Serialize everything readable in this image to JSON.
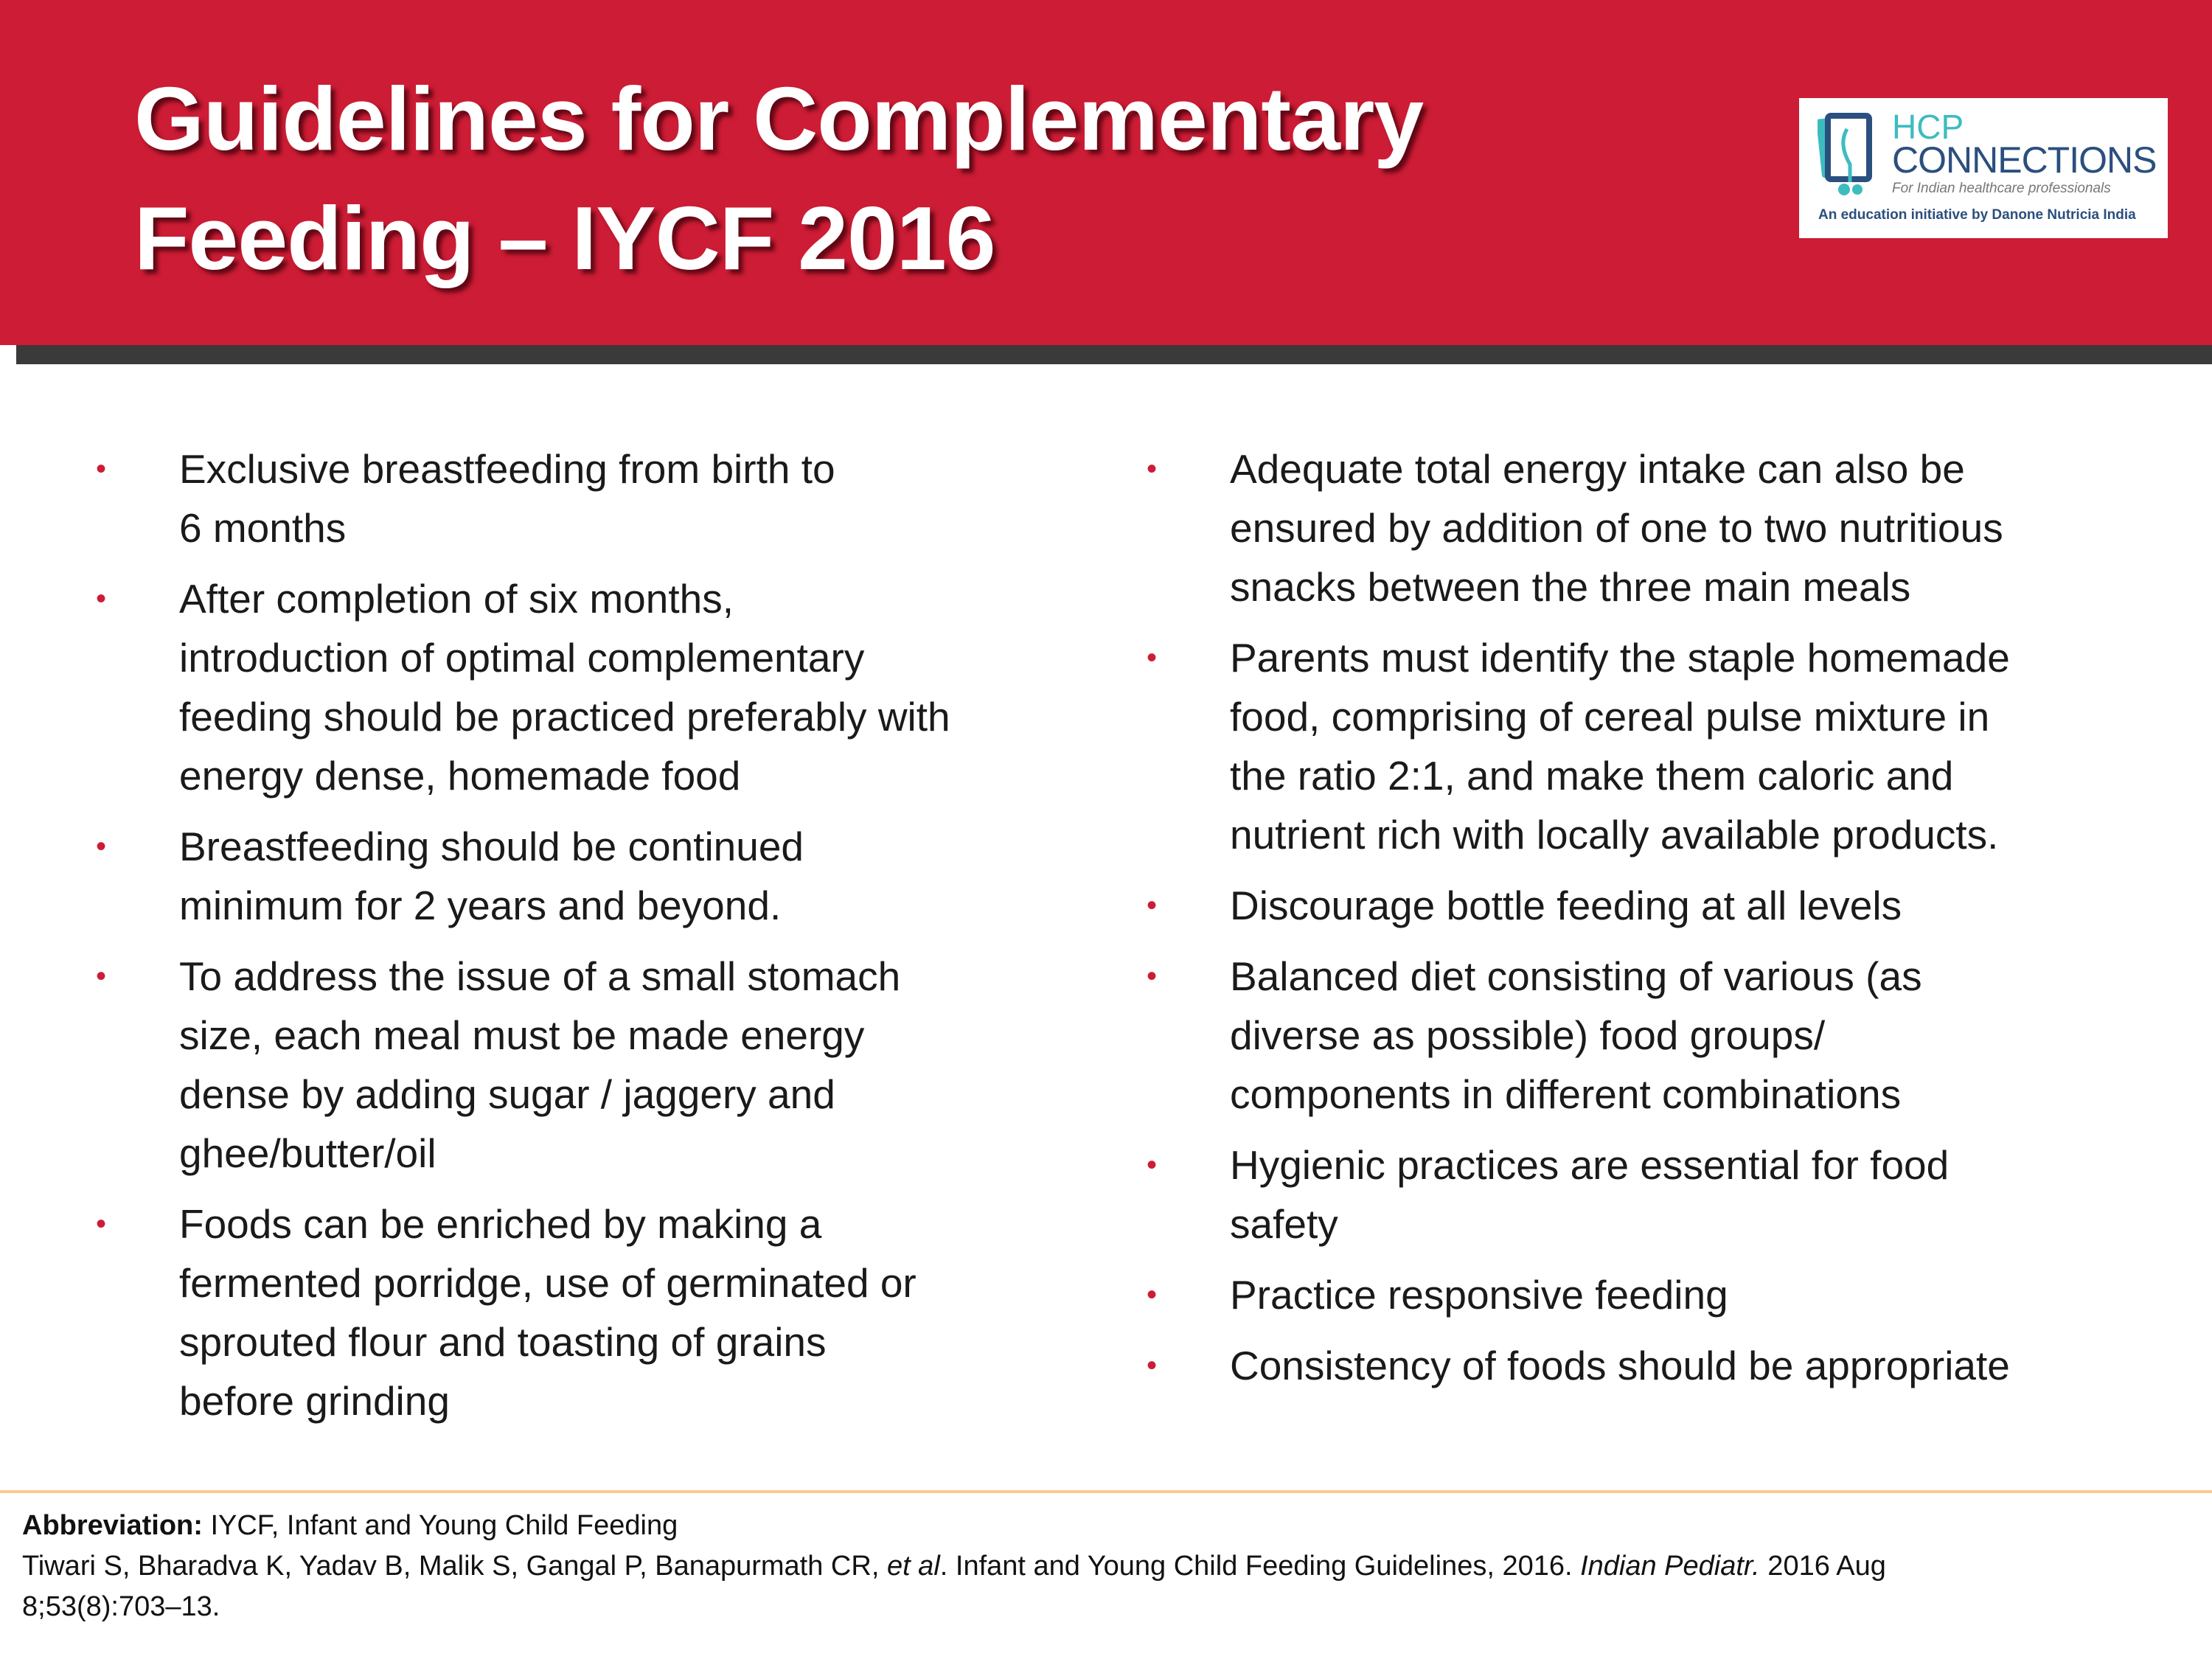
{
  "header": {
    "title_lines": [
      "Guidelines for Complementary",
      "Feeding – IYCF 2016"
    ]
  },
  "logo": {
    "line1": "HCP",
    "line2": "CONNECTIONS",
    "tagline": "For Indian healthcare professionals",
    "initiative": "An education initiative by Danone Nutricia India"
  },
  "left_items": [
    {
      "lines": [
        "Exclusive breastfeeding from birth to",
        "6 months"
      ]
    },
    {
      "lines": [
        "After completion of six months,",
        "introduction of optimal complementary",
        "feeding should be practiced preferably with",
        "energy dense, homemade food"
      ]
    },
    {
      "lines": [
        "Breastfeeding should be continued",
        "minimum for 2 years and beyond."
      ]
    },
    {
      "lines": [
        "To address the issue of a small stomach",
        "size, each meal must be made energy",
        "dense by adding sugar / jaggery and",
        "ghee/butter/oil"
      ]
    },
    {
      "lines": [
        "Foods can be enriched by making a",
        "fermented porridge, use of germinated or",
        "sprouted flour and toasting of grains",
        "before grinding"
      ]
    }
  ],
  "right_items": [
    {
      "lines": [
        "Adequate total energy intake can also be",
        "ensured by addition of one to two nutritious",
        "snacks between the three main meals"
      ]
    },
    {
      "lines": [
        "Parents must identify the staple homemade",
        "food, comprising of cereal pulse mixture in",
        "the ratio 2:1, and make them caloric and",
        "nutrient rich with locally available products."
      ]
    },
    {
      "lines": [
        "Discourage bottle feeding at all levels"
      ]
    },
    {
      "lines": [
        "Balanced diet consisting of various (as",
        "diverse as possible) food groups/",
        "components in different combinations"
      ]
    },
    {
      "lines": [
        "Hygienic practices are essential for food",
        "safety"
      ]
    },
    {
      "lines": [
        "Practice responsive feeding"
      ]
    },
    {
      "lines": [
        "Consistency of foods should be appropriate"
      ]
    }
  ],
  "bullet_char": "•",
  "footer": {
    "abbr_label": "Abbreviation:",
    "abbr_text": " IYCF, Infant and Young Child Feeding",
    "ref_part1": "Tiwari S, Bharadva K, Yadav B, Malik S, Gangal P, Banapurmath CR, ",
    "ref_etal": "et al",
    "ref_part2": ". Infant and Young Child Feeding Guidelines, 2016. ",
    "ref_journal": "Indian Pediatr.",
    "ref_part3": " 2016 Aug",
    "ref_line2": "8;53(8):703–13."
  },
  "colors": {
    "header_red": "#cd1c35",
    "bullet_red": "#cd1c35",
    "divider": "#fbc98f"
  }
}
